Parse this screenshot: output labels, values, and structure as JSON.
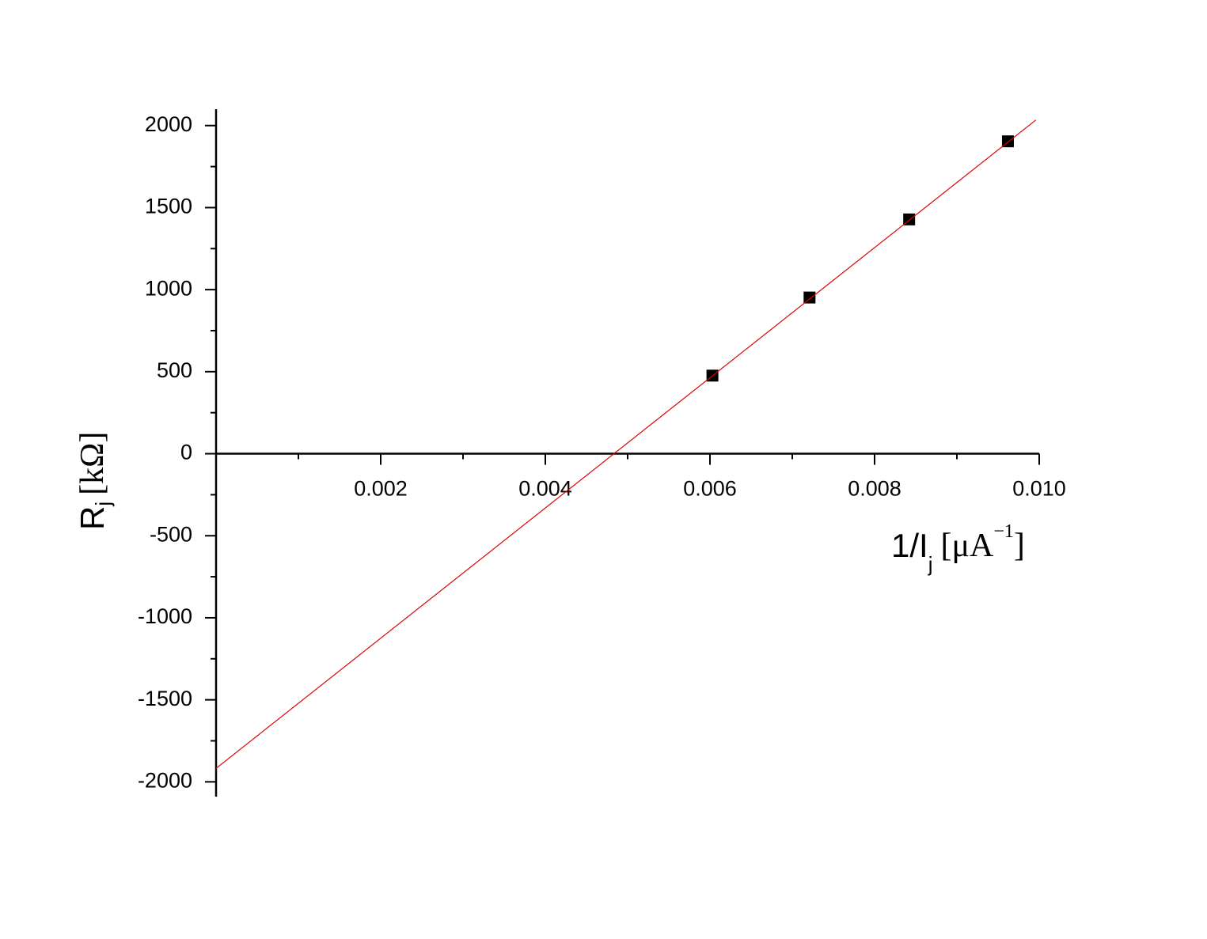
{
  "chart_data": {
    "type": "scatter",
    "xlabel": {
      "main": "1/I",
      "sub": "j",
      "unit": "[μA",
      "sup": "−1",
      "close": "]"
    },
    "ylabel": {
      "main": "R",
      "sub": "j",
      "unit": "[kΩ]"
    },
    "xlim": [
      0,
      0.01
    ],
    "ylim": [
      -2090,
      2100
    ],
    "xticks": [
      0.002,
      0.004,
      0.006,
      0.008,
      {
        "value": 0.01,
        "label": "0.010"
      }
    ],
    "xminorticks": [
      0.001,
      0.003,
      0.005,
      0.007,
      0.009
    ],
    "yticks": [
      -2000,
      -1500,
      -1000,
      -500,
      0,
      500,
      1000,
      1500,
      2000
    ],
    "yminorticks": [
      -1750,
      -1250,
      -750,
      -250,
      250,
      750,
      1250,
      1750
    ],
    "grid": false,
    "series": [
      {
        "style": "markers",
        "color": "#000000",
        "x": [
          0.00603,
          0.00721,
          0.00842,
          0.00962
        ],
        "values": [
          476,
          952,
          1428,
          1904
        ]
      },
      {
        "style": "line",
        "color": "#e00000",
        "x": [
          0,
          0.00996
        ],
        "values": [
          -1918,
          2034
        ]
      }
    ]
  }
}
